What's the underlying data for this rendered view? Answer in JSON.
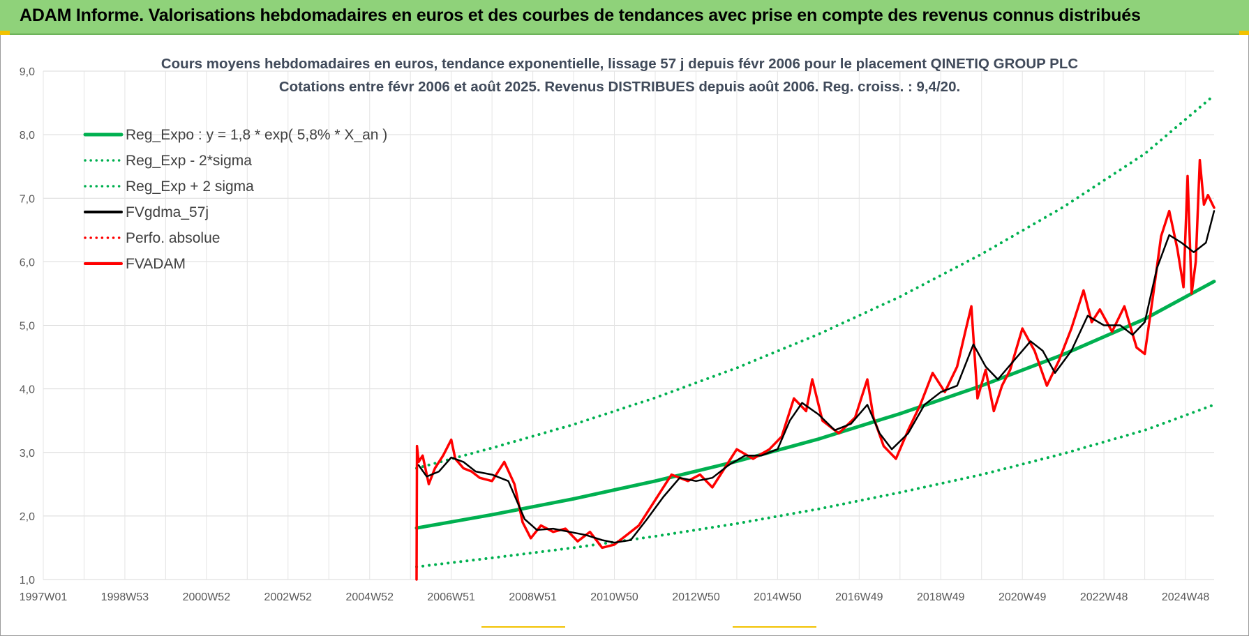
{
  "banner": {
    "title": "ADAM Informe. Valorisations hebdomadaires en euros et des courbes de tendances avec prise en compte des revenus connus distribués"
  },
  "chart_data": {
    "type": "line",
    "title": "Cours moyens hebdomadaires en euros, tendance exponentielle, lissage 57 j depuis févr 2006 pour le placement QINETIQ GROUP PLC",
    "subtitle": "Cotations entre févr 2006 et août 2025. Revenus DISTRIBUES depuis août 2006. Reg. croiss. : 9,4/20.",
    "xlabel": "",
    "ylabel": "",
    "x_range": [
      1997.0,
      2025.7
    ],
    "ylim": [
      1.0,
      9.0
    ],
    "y_ticks": [
      "1,0",
      "2,0",
      "3,0",
      "4,0",
      "5,0",
      "6,0",
      "7,0",
      "8,0",
      "9,0"
    ],
    "x_ticks": [
      {
        "label": "1997W01",
        "x": 1997.0
      },
      {
        "label": "1998W53",
        "x": 1999.0
      },
      {
        "label": "2000W52",
        "x": 2001.0
      },
      {
        "label": "2002W52",
        "x": 2003.0
      },
      {
        "label": "2004W52",
        "x": 2005.0
      },
      {
        "label": "2006W51",
        "x": 2007.0
      },
      {
        "label": "2008W51",
        "x": 2009.0
      },
      {
        "label": "2010W50",
        "x": 2011.0
      },
      {
        "label": "2012W50",
        "x": 2013.0
      },
      {
        "label": "2014W50",
        "x": 2015.0
      },
      {
        "label": "2016W49",
        "x": 2017.0
      },
      {
        "label": "2018W49",
        "x": 2019.0
      },
      {
        "label": "2020W49",
        "x": 2021.0
      },
      {
        "label": "2022W48",
        "x": 2023.0
      },
      {
        "label": "2024W48",
        "x": 2025.0
      }
    ],
    "grid": true,
    "legend_position": "top-left",
    "series": [
      {
        "name": "Reg_Expo : y = 1,8 * exp( 5,8% *  X_an )",
        "color": "#00b050",
        "style": "solid",
        "width": 5,
        "x": [
          2006.15,
          2008,
          2010,
          2012,
          2014,
          2016,
          2018,
          2020,
          2022,
          2024,
          2025.7
        ],
        "y": [
          1.81,
          2.02,
          2.27,
          2.55,
          2.86,
          3.21,
          3.61,
          4.05,
          4.54,
          5.1,
          5.69
        ]
      },
      {
        "name": "Reg_Exp - 2*sigma",
        "color": "#00b050",
        "style": "dotted",
        "width": 4,
        "x": [
          2006.15,
          2008,
          2010,
          2012,
          2014,
          2016,
          2018,
          2020,
          2022,
          2024,
          2025.7
        ],
        "y": [
          1.2,
          1.34,
          1.5,
          1.68,
          1.88,
          2.11,
          2.37,
          2.65,
          2.98,
          3.35,
          3.75
        ]
      },
      {
        "name": "Reg_Exp + 2 sigma",
        "color": "#00b050",
        "style": "dotted",
        "width": 4,
        "x": [
          2006.15,
          2008,
          2010,
          2012,
          2014,
          2016,
          2018,
          2020,
          2022,
          2024,
          2025.7
        ],
        "y": [
          2.75,
          3.07,
          3.44,
          3.86,
          4.33,
          4.86,
          5.45,
          6.12,
          6.86,
          7.7,
          8.62
        ]
      },
      {
        "name": "FVgdma_57j",
        "color": "#000000",
        "style": "solid",
        "width": 2.5,
        "x": [
          2006.2,
          2006.4,
          2006.7,
          2007.0,
          2007.3,
          2007.6,
          2008.0,
          2008.4,
          2008.8,
          2009.1,
          2009.5,
          2009.9,
          2010.3,
          2010.7,
          2011.0,
          2011.4,
          2011.8,
          2012.2,
          2012.6,
          2013.0,
          2013.4,
          2013.8,
          2014.2,
          2014.6,
          2015.0,
          2015.3,
          2015.6,
          2016.0,
          2016.4,
          2016.8,
          2017.2,
          2017.5,
          2017.8,
          2018.2,
          2018.6,
          2019.0,
          2019.4,
          2019.8,
          2020.1,
          2020.4,
          2020.8,
          2021.2,
          2021.5,
          2021.8,
          2022.2,
          2022.6,
          2023.0,
          2023.4,
          2023.7,
          2024.0,
          2024.3,
          2024.6,
          2024.9,
          2025.2,
          2025.5,
          2025.7
        ],
        "y": [
          2.8,
          2.62,
          2.7,
          2.92,
          2.85,
          2.7,
          2.65,
          2.55,
          1.95,
          1.78,
          1.8,
          1.75,
          1.7,
          1.62,
          1.58,
          1.62,
          1.95,
          2.3,
          2.6,
          2.55,
          2.6,
          2.8,
          2.95,
          2.95,
          3.05,
          3.5,
          3.78,
          3.6,
          3.35,
          3.45,
          3.75,
          3.3,
          3.05,
          3.3,
          3.75,
          3.95,
          4.05,
          4.7,
          4.35,
          4.15,
          4.45,
          4.75,
          4.6,
          4.25,
          4.6,
          5.15,
          5.0,
          5.0,
          4.85,
          5.05,
          5.9,
          6.42,
          6.3,
          6.15,
          6.3,
          6.8
        ]
      },
      {
        "name": "Perfo. absolue",
        "color": "#ff0000",
        "style": "dotted",
        "width": 3,
        "x": [],
        "y": []
      },
      {
        "name": "FVADAM",
        "color": "#ff0000",
        "style": "solid",
        "width": 3.5,
        "x": [
          2006.15,
          2006.16,
          2006.2,
          2006.3,
          2006.45,
          2006.6,
          2006.8,
          2007.0,
          2007.1,
          2007.3,
          2007.5,
          2007.7,
          2008.0,
          2008.3,
          2008.55,
          2008.75,
          2008.95,
          2009.2,
          2009.5,
          2009.8,
          2010.1,
          2010.4,
          2010.7,
          2011.0,
          2011.3,
          2011.6,
          2012.0,
          2012.4,
          2012.8,
          2013.1,
          2013.4,
          2013.7,
          2014.0,
          2014.4,
          2014.8,
          2015.1,
          2015.4,
          2015.7,
          2015.85,
          2016.1,
          2016.5,
          2016.9,
          2017.2,
          2017.35,
          2017.6,
          2017.9,
          2018.2,
          2018.5,
          2018.8,
          2019.1,
          2019.4,
          2019.6,
          2019.75,
          2019.9,
          2020.1,
          2020.3,
          2020.5,
          2020.7,
          2021.0,
          2021.3,
          2021.6,
          2021.9,
          2022.2,
          2022.5,
          2022.7,
          2022.9,
          2023.2,
          2023.5,
          2023.8,
          2024.0,
          2024.2,
          2024.4,
          2024.6,
          2024.8,
          2024.95,
          2025.05,
          2025.15,
          2025.25,
          2025.35,
          2025.45,
          2025.55,
          2025.7
        ],
        "y": [
          1.0,
          3.1,
          2.85,
          2.95,
          2.5,
          2.75,
          2.95,
          3.2,
          2.9,
          2.75,
          2.7,
          2.6,
          2.55,
          2.85,
          2.5,
          1.9,
          1.65,
          1.85,
          1.75,
          1.8,
          1.6,
          1.75,
          1.5,
          1.55,
          1.7,
          1.85,
          2.25,
          2.65,
          2.55,
          2.65,
          2.45,
          2.75,
          3.05,
          2.9,
          3.05,
          3.25,
          3.85,
          3.65,
          4.15,
          3.5,
          3.3,
          3.55,
          4.15,
          3.55,
          3.1,
          2.9,
          3.35,
          3.75,
          4.25,
          3.95,
          4.35,
          4.9,
          5.3,
          3.85,
          4.3,
          3.65,
          4.05,
          4.3,
          4.95,
          4.6,
          4.05,
          4.45,
          4.95,
          5.55,
          5.05,
          5.25,
          4.9,
          5.3,
          4.65,
          4.55,
          5.45,
          6.4,
          6.8,
          6.2,
          5.6,
          7.35,
          5.5,
          6.0,
          7.6,
          6.9,
          7.05,
          6.85
        ]
      }
    ]
  }
}
